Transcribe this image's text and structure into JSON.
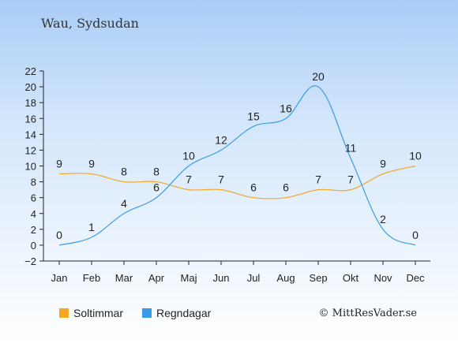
{
  "place": "Wau, Sydsudan",
  "copyright": "© MittResVader.se",
  "chart_data": {
    "type": "line",
    "categories": [
      "Jan",
      "Feb",
      "Mar",
      "Apr",
      "Maj",
      "Jun",
      "Jul",
      "Aug",
      "Sep",
      "Okt",
      "Nov",
      "Dec"
    ],
    "ylim": [
      -2,
      22
    ],
    "yticks": [
      -2,
      0,
      2,
      4,
      6,
      8,
      10,
      12,
      14,
      16,
      18,
      20,
      22
    ],
    "grid": false,
    "legend_position": "bottom",
    "series": [
      {
        "name": "Soltimmar",
        "color": "#f5a623",
        "values": [
          9,
          9,
          8,
          8,
          7,
          7,
          6,
          6,
          7,
          7,
          9,
          10
        ]
      },
      {
        "name": "Regndagar",
        "color": "#3a9be6",
        "values": [
          0,
          1,
          4,
          6,
          10,
          12,
          15,
          16,
          20,
          11,
          2,
          0
        ]
      }
    ]
  }
}
